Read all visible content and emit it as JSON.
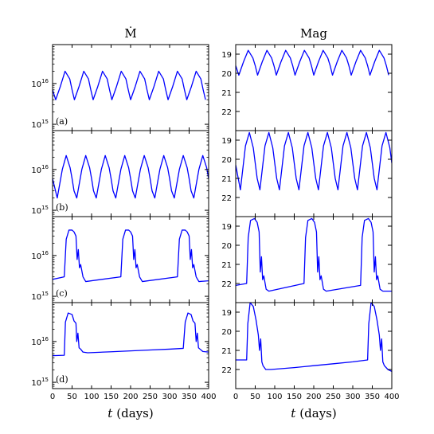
{
  "figure": {
    "col_titles": [
      "Ṁ",
      "Mag"
    ],
    "xlabel_var": "t",
    "xlabel_unit": "(days)"
  },
  "chart_data": [
    {
      "type": "line",
      "column": "Mdot",
      "panel_label": "(a)",
      "log_y": true,
      "xlim": [
        0,
        400
      ],
      "ylim": [
        700000000000000,
        90000000000000000
      ],
      "x_ticks": [
        0,
        50,
        100,
        150,
        200,
        250,
        300,
        350,
        400
      ],
      "y_ticks": [
        {
          "value": 1000000000000000,
          "label": "10",
          "exp": "15"
        },
        {
          "value": 10000000000000000,
          "label": "10",
          "exp": "16"
        }
      ],
      "series": [
        {
          "x": [
            0,
            8,
            20,
            32,
            44,
            50,
            56
          ],
          "y": [
            7000000000000000,
            4000000000000000,
            8500000000000000,
            20000000000000000,
            13000000000000000,
            7000000000000000,
            4000000000000000
          ],
          "period": 48,
          "repeats_until": 400
        }
      ]
    },
    {
      "type": "line",
      "column": "Mag",
      "panel_label": "",
      "log_y": false,
      "y_inverted": true,
      "xlim": [
        0,
        400
      ],
      "ylim": [
        18.5,
        23.0
      ],
      "x_ticks": [
        0,
        50,
        100,
        150,
        200,
        250,
        300,
        350,
        400
      ],
      "y_ticks": [
        {
          "value": 19,
          "label": "19"
        },
        {
          "value": 20,
          "label": "20"
        },
        {
          "value": 21,
          "label": "21"
        },
        {
          "value": 22,
          "label": "22"
        }
      ],
      "series": [
        {
          "x": [
            0,
            8,
            20,
            32,
            44,
            50,
            56
          ],
          "y": [
            19.6,
            20.1,
            19.4,
            18.8,
            19.2,
            19.6,
            20.1
          ],
          "period": 48,
          "repeats_until": 400
        }
      ]
    },
    {
      "type": "line",
      "column": "Mdot",
      "panel_label": "(b)",
      "log_y": true,
      "xlim": [
        0,
        400
      ],
      "ylim": [
        700000000000000,
        90000000000000000
      ],
      "x_ticks": [
        0,
        50,
        100,
        150,
        200,
        250,
        300,
        350,
        400
      ],
      "y_ticks": [
        {
          "value": 1000000000000000,
          "label": "10",
          "exp": "15"
        },
        {
          "value": 10000000000000000,
          "label": "10",
          "exp": "16"
        }
      ],
      "series": [
        {
          "x": [
            0,
            12,
            25,
            35,
            45,
            50,
            55
          ],
          "y": [
            6000000000000000,
            2000000000000000,
            10000000000000000,
            22000000000000000,
            11000000000000000,
            6000000000000000,
            3000000000000000
          ],
          "period": 50,
          "repeats_until": 400
        }
      ]
    },
    {
      "type": "line",
      "column": "Mag",
      "panel_label": "",
      "log_y": false,
      "y_inverted": true,
      "xlim": [
        0,
        400
      ],
      "ylim": [
        18.5,
        23.0
      ],
      "x_ticks": [
        0,
        50,
        100,
        150,
        200,
        250,
        300,
        350,
        400
      ],
      "y_ticks": [
        {
          "value": 19,
          "label": "19"
        },
        {
          "value": 20,
          "label": "20"
        },
        {
          "value": 21,
          "label": "21"
        },
        {
          "value": 22,
          "label": "22"
        }
      ],
      "series": [
        {
          "x": [
            0,
            12,
            25,
            35,
            45,
            50,
            55
          ],
          "y": [
            20.3,
            21.6,
            19.3,
            18.6,
            19.4,
            20.2,
            21.0
          ],
          "period": 50,
          "repeats_until": 400
        }
      ]
    },
    {
      "type": "line",
      "column": "Mdot",
      "panel_label": "(c)",
      "log_y": true,
      "xlim": [
        0,
        400
      ],
      "ylim": [
        700000000000000,
        90000000000000000
      ],
      "x_ticks": [
        0,
        50,
        100,
        150,
        200,
        250,
        300,
        350,
        400
      ],
      "y_ticks": [
        {
          "value": 1000000000000000,
          "label": "10",
          "exp": "15"
        },
        {
          "value": 10000000000000000,
          "label": "10",
          "exp": "16"
        }
      ],
      "series": [
        {
          "x": [
            0,
            30,
            35,
            42,
            50,
            55,
            60,
            63,
            66,
            69,
            72,
            78,
            85,
            175,
            180,
            187,
            195,
            200,
            205,
            208,
            211,
            214,
            217,
            223,
            230,
            320,
            325,
            332,
            340,
            345,
            350,
            353,
            356,
            359,
            362,
            368,
            375,
            400
          ],
          "y": [
            2600000000000000,
            3000000000000000,
            25000000000000000,
            42000000000000000,
            42000000000000000,
            38000000000000000,
            30000000000000000,
            8000000000000000,
            14000000000000000,
            5000000000000000,
            6000000000000000,
            3000000000000000,
            2300000000000000,
            3000000000000000,
            25000000000000000,
            42000000000000000,
            42000000000000000,
            38000000000000000,
            30000000000000000,
            8000000000000000,
            14000000000000000,
            5000000000000000,
            6000000000000000,
            3000000000000000,
            2300000000000000,
            3000000000000000,
            25000000000000000,
            42000000000000000,
            42000000000000000,
            38000000000000000,
            30000000000000000,
            8000000000000000,
            14000000000000000,
            5000000000000000,
            6000000000000000,
            3000000000000000,
            2300000000000000,
            2400000000000000
          ]
        }
      ]
    },
    {
      "type": "line",
      "column": "Mag",
      "panel_label": "",
      "log_y": false,
      "y_inverted": true,
      "xlim": [
        0,
        400
      ],
      "ylim": [
        18.5,
        23.0
      ],
      "x_ticks": [
        0,
        50,
        100,
        150,
        200,
        250,
        300,
        350,
        400
      ],
      "y_ticks": [
        {
          "value": 19,
          "label": "19"
        },
        {
          "value": 20,
          "label": "20"
        },
        {
          "value": 21,
          "label": "21"
        },
        {
          "value": 22,
          "label": "22"
        }
      ],
      "series": [
        {
          "x": [
            0,
            28,
            32,
            38,
            48,
            55,
            60,
            63,
            66,
            69,
            72,
            78,
            85,
            175,
            179,
            185,
            195,
            202,
            207,
            210,
            213,
            216,
            219,
            225,
            232,
            320,
            324,
            330,
            340,
            347,
            352,
            355,
            358,
            361,
            364,
            370,
            377,
            400
          ],
          "y": [
            22.1,
            22.0,
            19.6,
            18.7,
            18.6,
            18.8,
            19.3,
            21.4,
            20.6,
            21.8,
            21.6,
            22.3,
            22.4,
            22.0,
            19.6,
            18.7,
            18.6,
            18.8,
            19.3,
            21.4,
            20.6,
            21.8,
            21.6,
            22.3,
            22.4,
            22.1,
            19.6,
            18.7,
            18.6,
            18.8,
            19.3,
            21.4,
            20.6,
            21.8,
            21.6,
            22.3,
            22.4,
            22.4
          ]
        }
      ]
    },
    {
      "type": "line",
      "column": "Mdot",
      "panel_label": "(d)",
      "log_y": true,
      "xlim": [
        0,
        400
      ],
      "ylim": [
        700000000000000,
        90000000000000000
      ],
      "x_ticks": [
        0,
        50,
        100,
        150,
        200,
        250,
        300,
        350,
        400
      ],
      "y_ticks": [
        {
          "value": 1000000000000000,
          "label": "10",
          "exp": "15"
        },
        {
          "value": 10000000000000000,
          "label": "10",
          "exp": "16"
        }
      ],
      "series": [
        {
          "x": [
            0,
            30,
            33,
            40,
            50,
            55,
            60,
            62,
            65,
            68,
            72,
            78,
            90,
            150,
            200,
            250,
            300,
            335,
            340,
            347,
            355,
            360,
            365,
            368,
            371,
            374,
            378,
            385,
            400
          ],
          "y": [
            4500000000000000,
            4600000000000000,
            30000000000000000,
            50000000000000000,
            46000000000000000,
            32000000000000000,
            28000000000000000,
            10000000000000000,
            16000000000000000,
            7000000000000000,
            6500000000000000,
            5500000000000000,
            5300000000000000,
            5600000000000000,
            5900000000000000,
            6200000000000000,
            6500000000000000,
            6800000000000000,
            30000000000000000,
            50000000000000000,
            46000000000000000,
            32000000000000000,
            28000000000000000,
            10000000000000000,
            16000000000000000,
            7000000000000000,
            6500000000000000,
            5700000000000000,
            5500000000000000
          ]
        }
      ]
    },
    {
      "type": "line",
      "column": "Mag",
      "panel_label": "",
      "log_y": false,
      "y_inverted": true,
      "xlim": [
        0,
        400
      ],
      "ylim": [
        18.5,
        23.0
      ],
      "x_ticks": [
        0,
        50,
        100,
        150,
        200,
        250,
        300,
        350,
        400
      ],
      "y_ticks": [
        {
          "value": 19,
          "label": "19"
        },
        {
          "value": 20,
          "label": "20"
        },
        {
          "value": 21,
          "label": "21"
        },
        {
          "value": 22,
          "label": "22"
        }
      ],
      "series": [
        {
          "x": [
            0,
            28,
            31,
            37,
            45,
            52,
            58,
            61,
            64,
            67,
            70,
            77,
            90,
            150,
            200,
            250,
            300,
            338,
            341,
            347,
            355,
            362,
            368,
            371,
            374,
            377,
            381,
            390,
            400
          ],
          "y": [
            21.5,
            21.5,
            19.6,
            18.5,
            18.7,
            19.4,
            20.2,
            21.0,
            20.4,
            21.6,
            21.8,
            22.0,
            22.0,
            21.9,
            21.8,
            21.7,
            21.6,
            21.5,
            19.6,
            18.5,
            18.7,
            19.4,
            20.2,
            21.0,
            20.4,
            21.6,
            21.8,
            22.0,
            22.1
          ]
        }
      ]
    }
  ]
}
